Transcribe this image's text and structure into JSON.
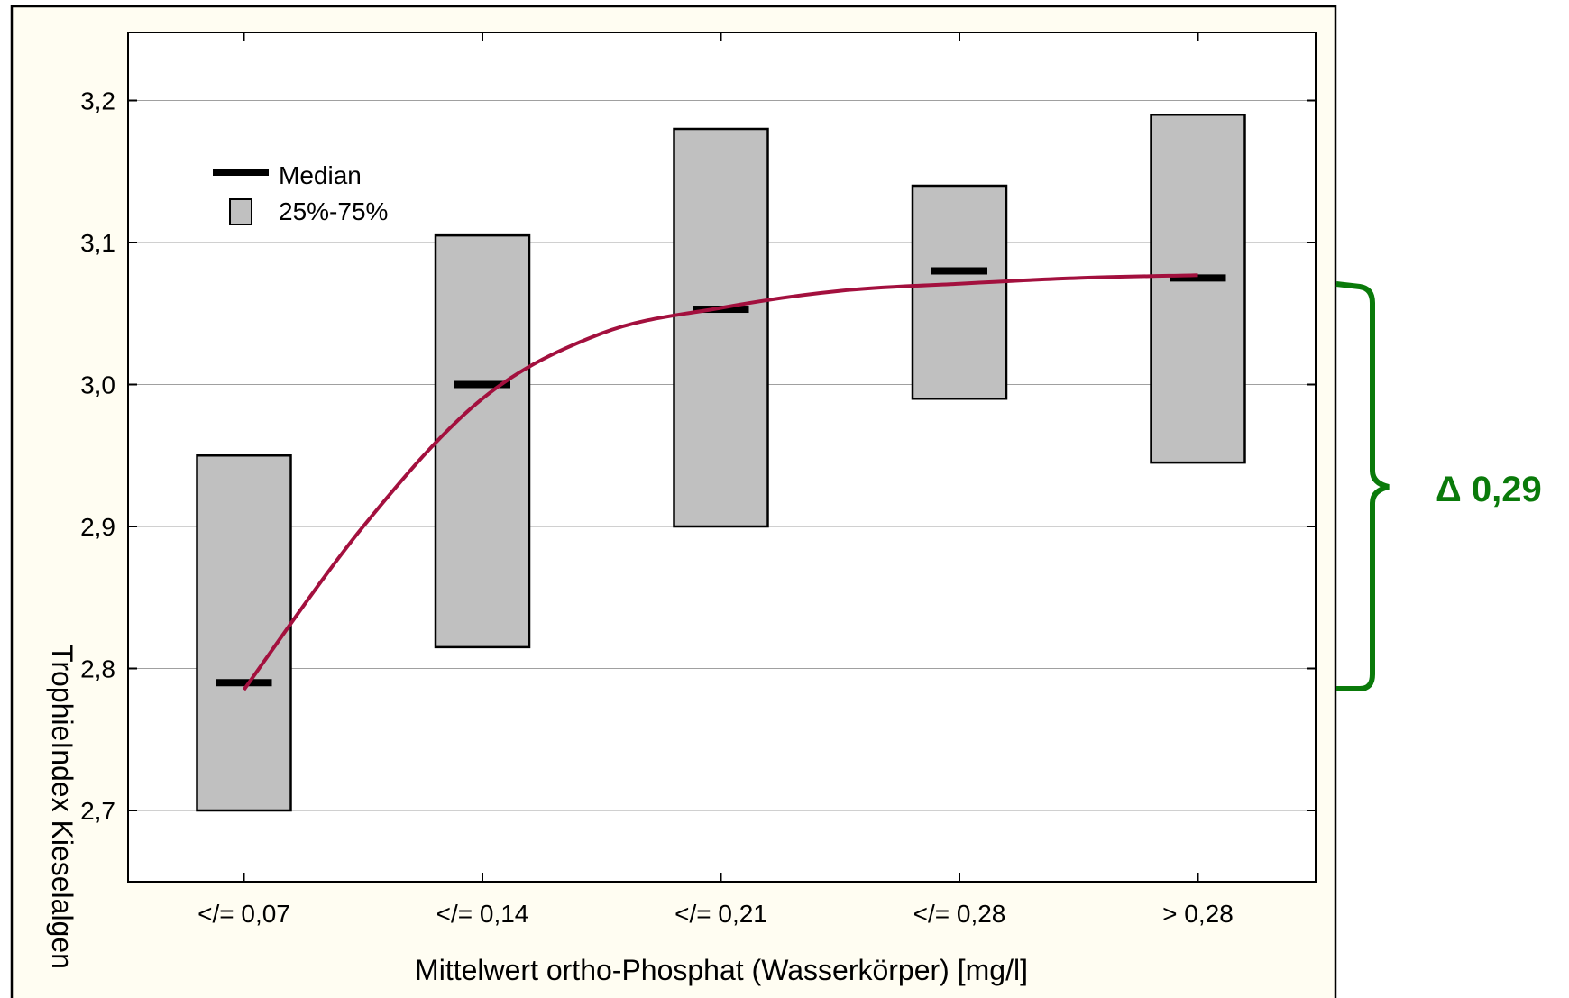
{
  "chart_data": {
    "type": "box",
    "title": "",
    "xlabel": "Mittelwert ortho-Phosphat (Wasserkörper) [mg/l]",
    "ylabel": "TrophieIndex Kieselalgen",
    "categories": [
      "</= 0,07",
      "</= 0,14",
      "</= 0,21",
      "</= 0,28",
      "> 0,28"
    ],
    "ylim": [
      2.65,
      3.25
    ],
    "yticks": [
      2.7,
      2.8,
      2.9,
      3.0,
      3.1,
      3.2
    ],
    "ytick_labels": [
      "2,7",
      "2,8",
      "2,9",
      "3,0",
      "3,1",
      "3,2"
    ],
    "grid": true,
    "series": [
      {
        "name": "25%-75%",
        "q1": [
          2.7,
          2.815,
          2.9,
          2.99,
          2.945
        ],
        "q3": [
          2.95,
          3.105,
          3.18,
          3.14,
          3.19
        ]
      },
      {
        "name": "Median",
        "values": [
          2.79,
          3.0,
          3.053,
          3.08,
          3.075
        ]
      }
    ],
    "trend_line": {
      "color": "#a3103e",
      "x": [
        0,
        0.5,
        1,
        1.5,
        2,
        2.5,
        3,
        3.5,
        4
      ],
      "y": [
        2.785,
        2.9,
        2.99,
        3.036,
        3.054,
        3.066,
        3.071,
        3.075,
        3.077
      ]
    },
    "legend": {
      "position": "top-left",
      "items": [
        "Median",
        "25%-75%"
      ]
    },
    "annotation": {
      "text": "Δ 0,29",
      "color": "#0a7a0a"
    }
  },
  "colors": {
    "box_fill": "#c0c0c0",
    "frame_bg": "#fffdf2",
    "frame_border": "#000000",
    "grid": "#a0a0a0",
    "annotation": "#0a7a0a",
    "trend": "#a3103e"
  }
}
